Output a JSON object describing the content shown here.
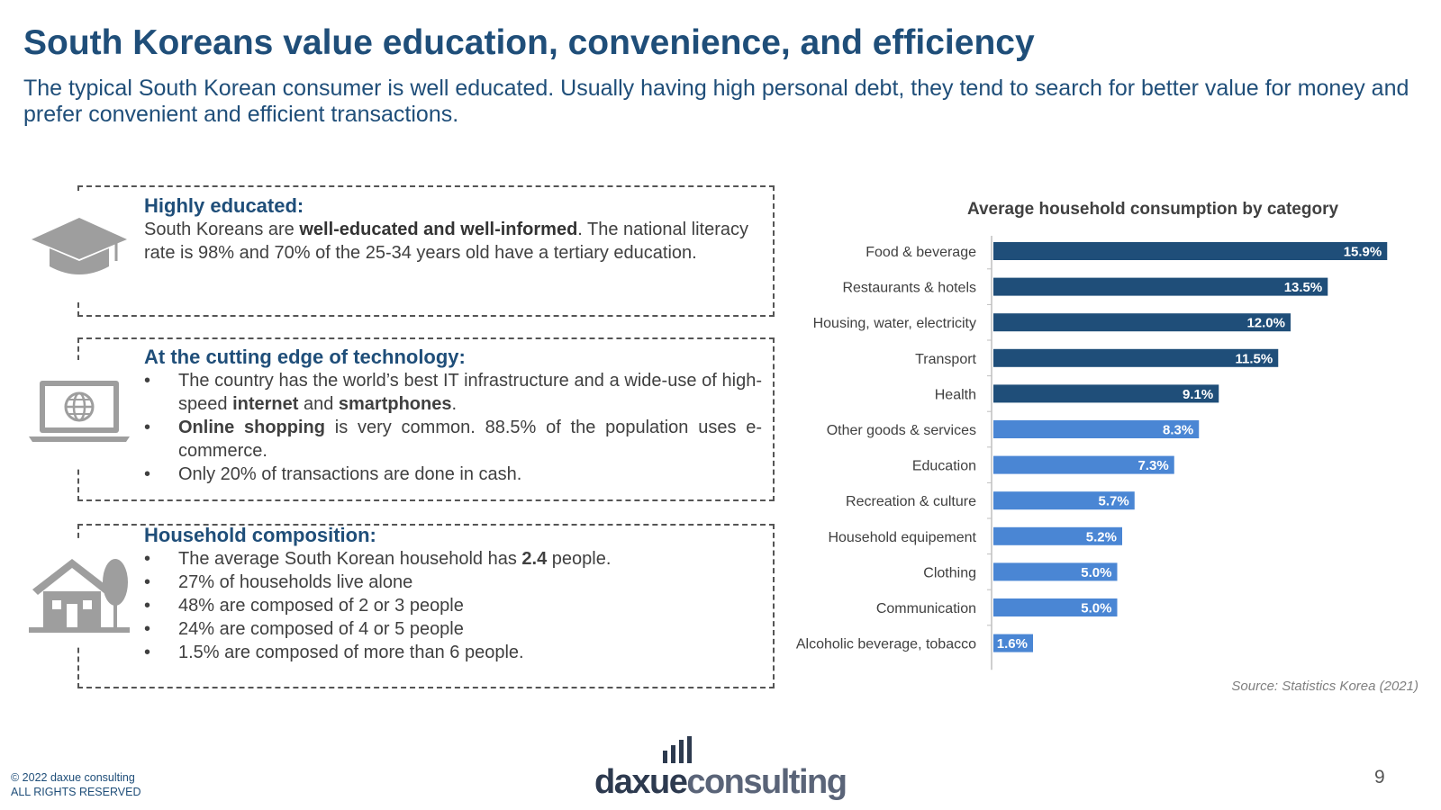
{
  "header": {
    "title": "South Koreans value education, convenience, and efficiency",
    "subtitle": "The typical South Korean consumer is well educated. Usually having high personal debt, they tend to search for better value for money and prefer convenient and efficient transactions."
  },
  "cards": {
    "education": {
      "icon": "graduation-cap-icon",
      "heading": "Highly educated:",
      "text_before": "South Koreans are ",
      "text_bold": "well-educated and well-informed",
      "text_after": ". The national literacy rate is 98% and 70% of the 25-34 years old have a tertiary education."
    },
    "technology": {
      "icon": "laptop-globe-icon",
      "heading": "At the cutting edge of technology:",
      "bullet1_a": "The country has the world’s best IT infrastructure and a wide-use of high-speed ",
      "bullet1_b": "internet",
      "bullet1_c": " and ",
      "bullet1_d": "smartphones",
      "bullet1_e": ".",
      "bullet2_a": "Online shopping",
      "bullet2_b": " is very common. 88.5% of the population uses e-commerce.",
      "bullet3": "Only 20% of transactions are done in cash."
    },
    "household": {
      "icon": "house-tree-icon",
      "heading": "Household composition:",
      "bullet1_a": "The average South Korean household has ",
      "bullet1_b": "2.4",
      "bullet1_c": " people.",
      "bullet2": "27%  of households live alone",
      "bullet3": "48% are composed of 2 or 3 people",
      "bullet4": "24% are composed of 4 or 5 people",
      "bullet5": "1.5% are composed of more than 6 people."
    }
  },
  "chart_data": {
    "type": "bar",
    "orientation": "horizontal",
    "title": "Average household consumption by category",
    "categories": [
      "Food & beverage",
      "Restaurants & hotels",
      "Housing, water, electricity",
      "Transport",
      "Health",
      "Other goods & services",
      "Education",
      "Recreation & culture",
      "Household equipement",
      "Clothing",
      "Communication",
      "Alcoholic beverage, tobacco"
    ],
    "values": [
      15.9,
      13.5,
      12.0,
      11.5,
      9.1,
      8.3,
      7.3,
      5.7,
      5.2,
      5.0,
      5.0,
      1.6
    ],
    "value_labels": [
      "15.9%",
      "13.5%",
      "12.0%",
      "11.5%",
      "9.1%",
      "8.3%",
      "7.3%",
      "5.7%",
      "5.2%",
      "5.0%",
      "5.0%",
      "1.6%"
    ],
    "highlight_count": 5,
    "colors": {
      "highlight": "#1f4e79",
      "regular": "#4a86d4",
      "label": "#ffffff"
    },
    "xlim": [
      0,
      16
    ]
  },
  "source": "Source: Statistics Korea  (2021)",
  "footer": {
    "copyright_line1": "© 2022 daxue consulting",
    "copyright_line2": "ALL RIGHTS RESERVED",
    "logo_daxue": "daxue",
    "logo_consulting": "consulting",
    "page_number": "9"
  }
}
